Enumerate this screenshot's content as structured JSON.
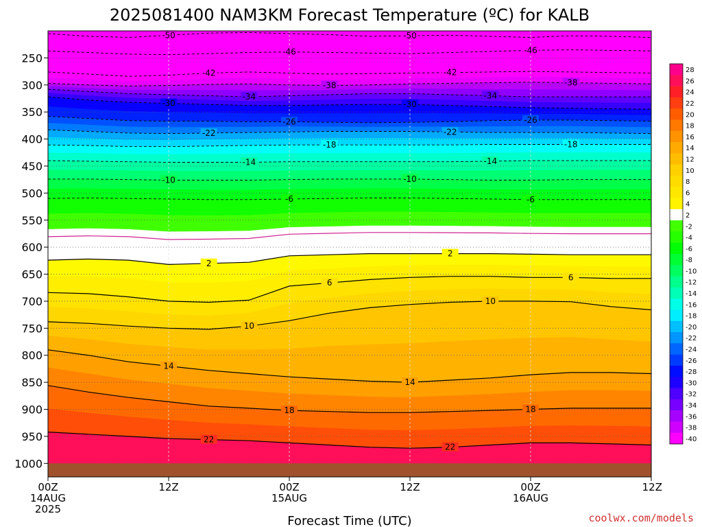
{
  "chart_data": {
    "type": "heatmap",
    "title": "2025081400 NAM3KM Forecast Temperature (ºC) for KALB",
    "xlabel": "Forecast Time (UTC)",
    "x_ticks": [
      {
        "hour": 0,
        "lines": [
          "00Z",
          "14AUG",
          "2025"
        ]
      },
      {
        "hour": 12,
        "lines": [
          "12Z"
        ]
      },
      {
        "hour": 24,
        "lines": [
          "00Z",
          "15AUG"
        ]
      },
      {
        "hour": 36,
        "lines": [
          "12Z"
        ]
      },
      {
        "hour": 48,
        "lines": [
          "00Z",
          "16AUG"
        ]
      },
      {
        "hour": 60,
        "lines": [
          "12Z"
        ]
      }
    ],
    "x_range_hours": [
      0,
      60
    ],
    "y_axis": "pressure (hPa)",
    "y_ticks": [
      250,
      300,
      350,
      400,
      450,
      500,
      550,
      600,
      650,
      700,
      750,
      800,
      850,
      900,
      950,
      1000
    ],
    "y_range": [
      200,
      1025
    ],
    "surface_pressure": 1000,
    "colorbar_levels": [
      28,
      26,
      24,
      22,
      20,
      18,
      16,
      14,
      12,
      10,
      8,
      6,
      4,
      2,
      -2,
      -4,
      -6,
      -8,
      -10,
      -12,
      -14,
      -16,
      -18,
      -20,
      -22,
      -24,
      -26,
      -28,
      -30,
      -32,
      -34,
      -36,
      -38,
      -40
    ],
    "contours": [
      {
        "level": -50,
        "p": [
          205,
          210,
          212,
          208,
          204,
          203,
          205,
          207,
          210,
          209,
          208,
          210,
          212,
          209,
          210,
          212
        ]
      },
      {
        "level": -46,
        "p": [
          237,
          240,
          243,
          244,
          242,
          240,
          239,
          240,
          241,
          242,
          240,
          238,
          236,
          235,
          236,
          237
        ]
      },
      {
        "level": -42,
        "p": [
          276,
          280,
          284,
          282,
          278,
          276,
          278,
          280,
          279,
          278,
          277,
          276,
          275,
          276,
          277,
          278
        ]
      },
      {
        "level": -38,
        "p": [
          297,
          300,
          302,
          301,
          299,
          298,
          300,
          301,
          300,
          298,
          297,
          296,
          295,
          296,
          297,
          298
        ]
      },
      {
        "level": -34,
        "p": [
          308,
          312,
          316,
          318,
          320,
          322,
          320,
          318,
          316,
          316,
          318,
          320,
          322,
          322,
          322,
          322
        ]
      },
      {
        "level": -30,
        "p": [
          322,
          328,
          332,
          334,
          336,
          338,
          338,
          337,
          336,
          336,
          338,
          340,
          342,
          343,
          344,
          345
        ]
      },
      {
        "level": -26,
        "p": [
          358,
          362,
          366,
          367,
          367,
          368,
          368,
          369,
          370,
          369,
          368,
          366,
          365,
          365,
          366,
          367
        ]
      },
      {
        "level": -22,
        "p": [
          383,
          386,
          389,
          390,
          389,
          388,
          387,
          386,
          386,
          386,
          387,
          388,
          388,
          388,
          389,
          390
        ]
      },
      {
        "level": -18,
        "p": [
          411,
          412,
          414,
          414,
          413,
          412,
          411,
          411,
          411,
          411,
          411,
          410,
          410,
          410,
          410,
          410
        ]
      },
      {
        "level": -14,
        "p": [
          440,
          441,
          442,
          443,
          443,
          443,
          442,
          442,
          442,
          442,
          442,
          441,
          440,
          440,
          440,
          440
        ]
      },
      {
        "level": -10,
        "p": [
          474,
          474,
          475,
          476,
          476,
          476,
          475,
          474,
          474,
          474,
          475,
          476,
          476,
          475,
          475,
          475
        ]
      },
      {
        "level": -6,
        "p": [
          510,
          509,
          510,
          511,
          512,
          512,
          511,
          510,
          509,
          509,
          510,
          511,
          512,
          512,
          512,
          512
        ]
      },
      {
        "level": 2,
        "p": [
          624,
          622,
          624,
          632,
          630,
          628,
          616,
          614,
          612,
          612,
          612,
          612,
          613,
          614,
          614,
          614
        ]
      },
      {
        "level": 6,
        "p": [
          684,
          686,
          692,
          700,
          702,
          698,
          672,
          666,
          660,
          656,
          654,
          654,
          656,
          656,
          658,
          658
        ]
      },
      {
        "level": 10,
        "p": [
          738,
          741,
          746,
          750,
          752,
          746,
          736,
          722,
          712,
          706,
          702,
          700,
          700,
          701,
          710,
          716
        ]
      },
      {
        "level": 14,
        "p": [
          790,
          800,
          812,
          820,
          828,
          834,
          840,
          844,
          848,
          850,
          846,
          842,
          836,
          832,
          832,
          834
        ]
      },
      {
        "level": 18,
        "p": [
          856,
          868,
          878,
          886,
          894,
          898,
          902,
          904,
          906,
          906,
          904,
          902,
          900,
          898,
          898,
          898
        ]
      },
      {
        "level": 22,
        "p": [
          942,
          946,
          950,
          954,
          956,
          958,
          962,
          966,
          970,
          972,
          970,
          966,
          962,
          962,
          964,
          966
        ]
      }
    ]
  }
}
